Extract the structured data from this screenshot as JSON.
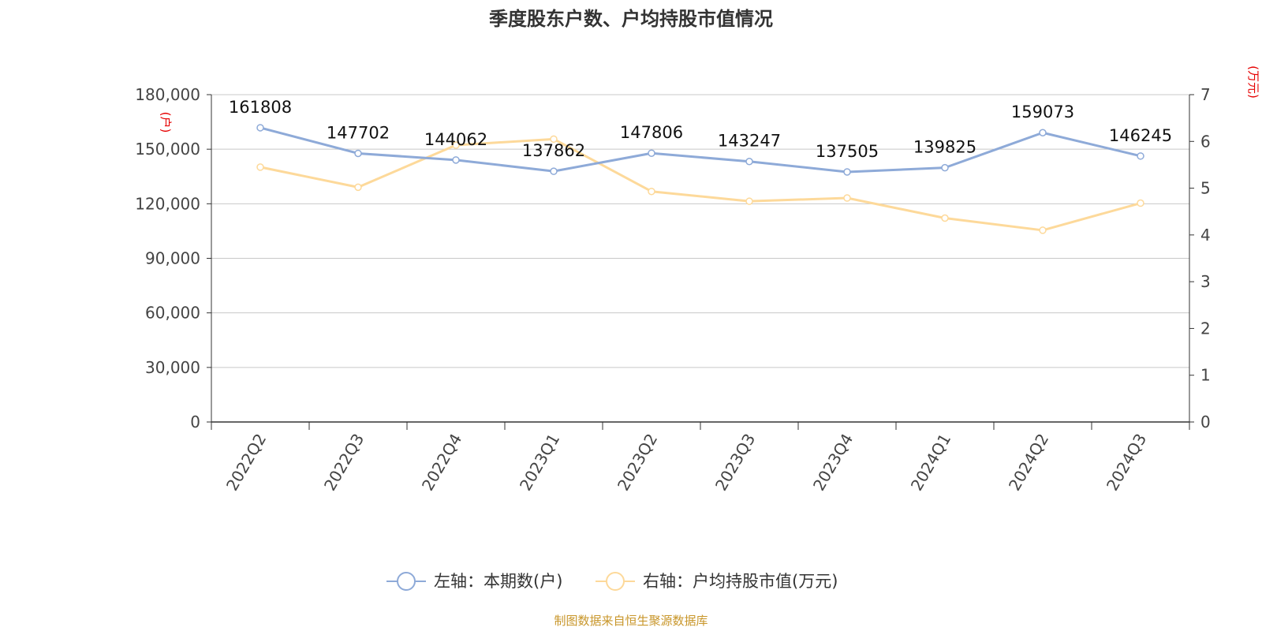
{
  "title": "季度股东户数、户均持股市值情况",
  "left_unit": "(户)",
  "right_unit": "(万元)",
  "source": "制图数据来自恒生聚源数据库",
  "colors": {
    "series1": "#8eaad8",
    "series2": "#fdd99a",
    "grid": "#c8c8c8",
    "axis": "#333333",
    "unit": "#e60000",
    "source": "#c8962a"
  },
  "chart_data": {
    "type": "line",
    "title": "季度股东户数、户均持股市值情况",
    "categories": [
      "2022Q2",
      "2022Q3",
      "2022Q4",
      "2023Q1",
      "2023Q2",
      "2023Q3",
      "2023Q4",
      "2024Q1",
      "2024Q2",
      "2024Q3"
    ],
    "y_left": {
      "label": "(户)",
      "range": [
        0,
        180000
      ],
      "ticks": [
        0,
        30000,
        60000,
        90000,
        120000,
        150000,
        180000
      ],
      "tick_labels": [
        "0",
        "30,000",
        "60,000",
        "90,000",
        "120,000",
        "150,000",
        "180,000"
      ]
    },
    "y_right": {
      "label": "(万元)",
      "range": [
        0,
        7
      ],
      "ticks": [
        0,
        1,
        2,
        3,
        4,
        5,
        6,
        7
      ],
      "tick_labels": [
        "0",
        "1",
        "2",
        "3",
        "4",
        "5",
        "6",
        "7"
      ]
    },
    "grid": true,
    "legend_position": "bottom",
    "series": [
      {
        "name": "左轴：本期数(户)",
        "axis": "left",
        "values": [
          161808,
          147702,
          144062,
          137862,
          147806,
          143247,
          137505,
          139825,
          159073,
          146245
        ],
        "labels": [
          "161808",
          "147702",
          "144062",
          "137862",
          "147806",
          "143247",
          "137505",
          "139825",
          "159073",
          "146245"
        ]
      },
      {
        "name": "右轴：户均持股市值(万元)",
        "axis": "right",
        "values": [
          5.45,
          5.02,
          5.92,
          6.05,
          4.93,
          4.72,
          4.79,
          4.36,
          4.1,
          4.68
        ]
      }
    ]
  }
}
